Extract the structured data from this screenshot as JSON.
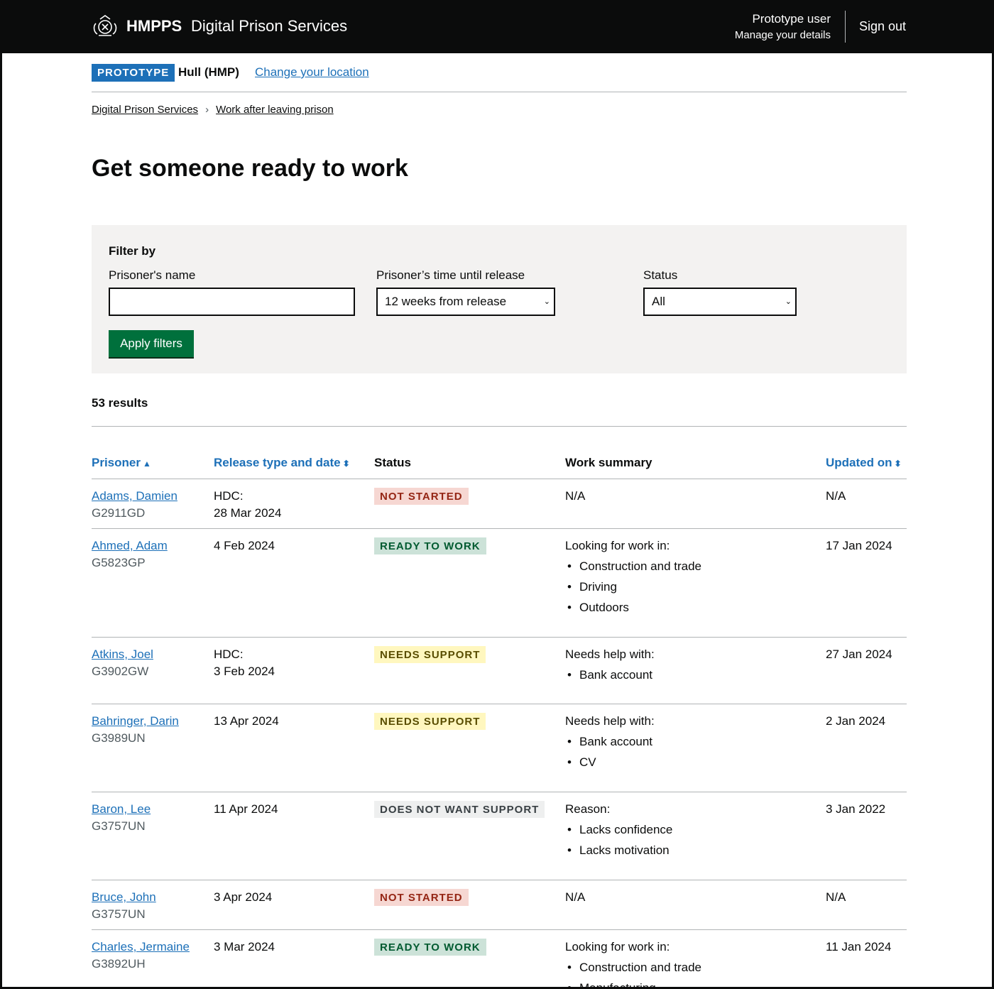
{
  "header": {
    "brand_bold": "HMPPS",
    "service_name": "Digital Prison Services",
    "user_name": "Prototype user",
    "manage_link": "Manage your details",
    "sign_out": "Sign out"
  },
  "location_bar": {
    "tag": "PROTOTYPE",
    "location": "Hull (HMP)",
    "change_link": "Change your location"
  },
  "breadcrumb": [
    "Digital Prison Services",
    "Work after leaving prison"
  ],
  "page_title": "Get someone ready to work",
  "filters": {
    "heading": "Filter by",
    "name_label": "Prisoner's name",
    "name_value": "",
    "release_label": "Prisoner’s time until release",
    "release_value": "12 weeks from release",
    "status_label": "Status",
    "status_value": "All",
    "apply_button": "Apply filters"
  },
  "results_count": "53 results",
  "table": {
    "headers": {
      "prisoner": "Prisoner",
      "release": "Release type and date",
      "status": "Status",
      "work": "Work summary",
      "updated": "Updated on"
    },
    "rows": [
      {
        "name": "Adams, Damien",
        "id": "G2911GD",
        "release_type": "HDC:",
        "release_date": "28 Mar 2024",
        "status": "NOT STARTED",
        "work_heading": "N/A",
        "work_items": [],
        "updated": "N/A"
      },
      {
        "name": "Ahmed, Adam",
        "id": "G5823GP",
        "release_type": "",
        "release_date": "4 Feb 2024",
        "status": "READY TO WORK",
        "work_heading": "Looking for work in:",
        "work_items": [
          "Construction and trade",
          "Driving",
          "Outdoors"
        ],
        "updated": "17 Jan 2024"
      },
      {
        "name": "Atkins, Joel",
        "id": "G3902GW",
        "release_type": "HDC:",
        "release_date": "3 Feb 2024",
        "status": "NEEDS SUPPORT",
        "work_heading": "Needs help with:",
        "work_items": [
          "Bank account"
        ],
        "updated": "27 Jan 2024"
      },
      {
        "name": "Bahringer, Darin",
        "id": "G3989UN",
        "release_type": "",
        "release_date": "13 Apr 2024",
        "status": "NEEDS SUPPORT",
        "work_heading": "Needs help with:",
        "work_items": [
          "Bank account",
          "CV"
        ],
        "updated": "2 Jan 2024"
      },
      {
        "name": "Baron, Lee",
        "id": "G3757UN",
        "release_type": "",
        "release_date": "11 Apr 2024",
        "status": "DOES NOT WANT SUPPORT",
        "work_heading": "Reason:",
        "work_items": [
          "Lacks confidence",
          "Lacks motivation"
        ],
        "updated": "3 Jan 2022"
      },
      {
        "name": "Bruce, John",
        "id": "G3757UN",
        "release_type": "",
        "release_date": "3 Apr 2024",
        "status": "NOT STARTED",
        "work_heading": "N/A",
        "work_items": [],
        "updated": "N/A"
      },
      {
        "name": "Charles, Jermaine",
        "id": "G3892UH",
        "release_type": "",
        "release_date": "3 Mar 2024",
        "status": "READY TO WORK",
        "work_heading": "Looking for work in:",
        "work_items": [
          "Construction and trade",
          "Manufacturing"
        ],
        "updated": "11 Jan 2024"
      }
    ]
  },
  "colors": {
    "header_bg": "#0b0c0c",
    "link": "#1d70b8",
    "button_green": "#00703c",
    "panel_bg": "#f3f2f1"
  }
}
